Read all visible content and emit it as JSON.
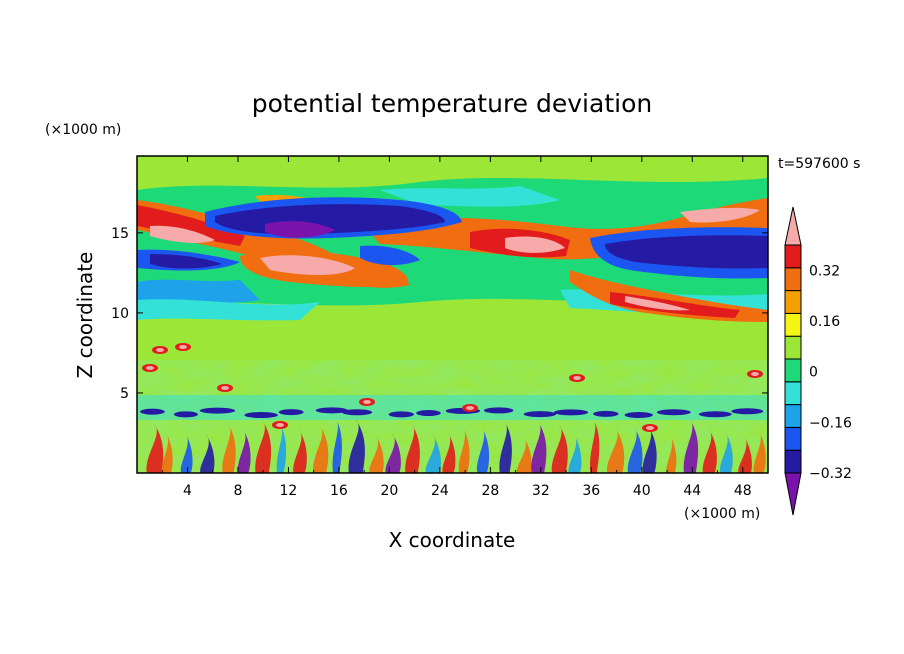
{
  "chart_data": {
    "type": "heatmap",
    "title": "potential temperature deviation",
    "time_label": "t=597600 s",
    "xlabel": "X coordinate",
    "ylabel": "Z coordinate",
    "x_unit": "(×1000 m)",
    "y_unit": "(×1000 m)",
    "xlim": [
      0,
      50
    ],
    "ylim": [
      0,
      19.8
    ],
    "x_ticks": [
      "4",
      "8",
      "12",
      "16",
      "20",
      "24",
      "28",
      "32",
      "36",
      "40",
      "44",
      "48"
    ],
    "y_ticks": [
      "5",
      "10",
      "15"
    ],
    "colorbar": {
      "labels": [
        "0.32",
        "0.16",
        "0",
        "−0.16",
        "−0.32"
      ],
      "levels": [
        -0.4,
        -0.32,
        -0.24,
        -0.16,
        -0.08,
        0,
        0.08,
        0.16,
        0.24,
        0.32,
        0.4
      ],
      "colors": [
        "#7a12ac",
        "#241aa4",
        "#1c56f0",
        "#1ea2ea",
        "#34e1d6",
        "#1ed978",
        "#9ce638",
        "#f5f515",
        "#f5a000",
        "#f06e0f",
        "#e21c1c",
        "#f7aaaa"
      ]
    }
  }
}
